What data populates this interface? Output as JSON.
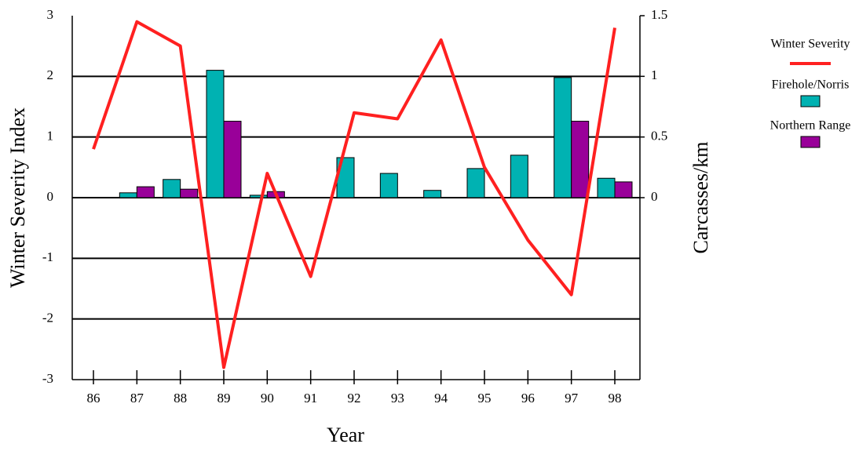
{
  "chart_data": {
    "type": "bar",
    "x_label": "Year",
    "y_label": "Winter Severity Index",
    "y2_label": "Carcasses/km",
    "categories": [
      "86",
      "87",
      "88",
      "89",
      "90",
      "91",
      "92",
      "93",
      "94",
      "95",
      "96",
      "97",
      "98"
    ],
    "series": [
      {
        "name": "Winter Severity",
        "type": "line",
        "color": "#ff2020",
        "values": [
          0.8,
          2.9,
          2.5,
          -2.8,
          0.4,
          -1.3,
          1.4,
          1.3,
          2.6,
          0.5,
          -0.7,
          -1.6,
          2.8
        ]
      },
      {
        "name": "Firehole/Norris",
        "type": "bar",
        "axis": "y2",
        "color": "#00b2b2",
        "values": [
          null,
          0.04,
          0.15,
          1.05,
          0.02,
          null,
          0.33,
          0.2,
          0.06,
          0.24,
          0.35,
          0.99,
          0.16
        ]
      },
      {
        "name": "Northern Range",
        "type": "bar",
        "axis": "y2",
        "color": "#990099",
        "values": [
          null,
          0.09,
          0.07,
          0.63,
          0.05,
          null,
          null,
          null,
          null,
          null,
          null,
          0.63,
          0.13
        ]
      }
    ],
    "ylim": [
      -3,
      3
    ],
    "yticks": [
      -3,
      -2,
      -1,
      0,
      1,
      2,
      3
    ],
    "y2lim": [
      -1.5,
      1.5
    ],
    "y2ticks": [
      0,
      0.5,
      1,
      1.5
    ],
    "grid": true,
    "legend": "right"
  }
}
